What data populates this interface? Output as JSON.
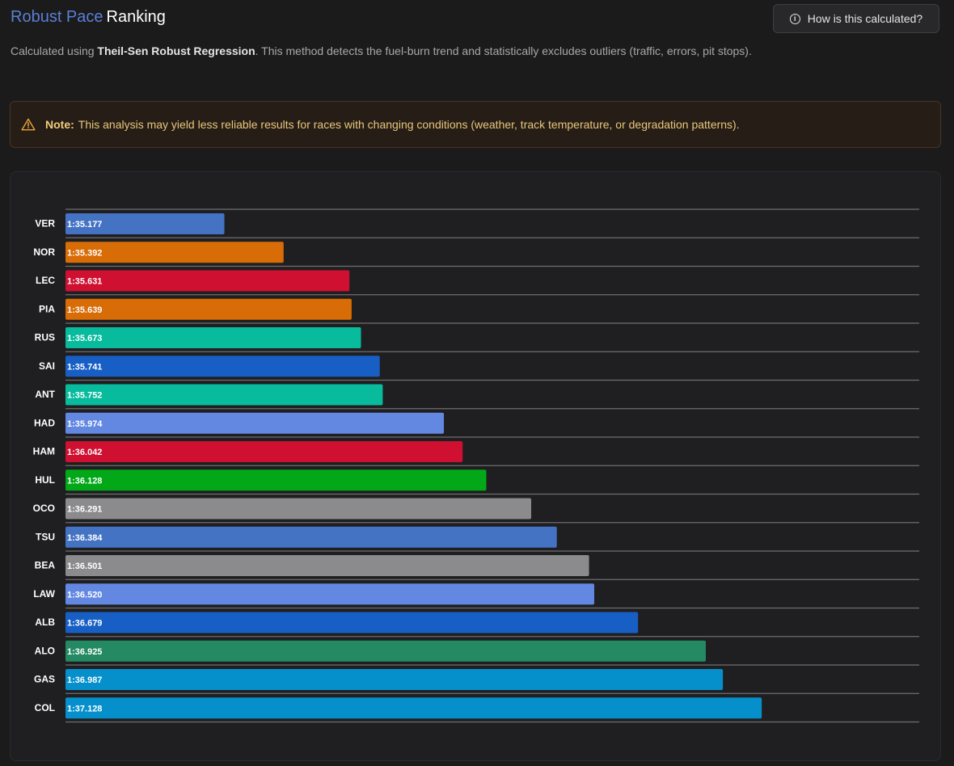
{
  "header": {
    "title_accent": "Robust Pace",
    "title_rest": "Ranking",
    "help_button": "How is this calculated?"
  },
  "description": {
    "prefix": "Calculated using ",
    "method": "Theil-Sen Robust Regression",
    "suffix": ". This method detects the fuel-burn trend and statistically excludes outliers (traffic, errors, pit stops)."
  },
  "note": {
    "label": "Note:",
    "text": "This analysis may yield less reliable results for races with changing conditions (weather, track temperature, or degradation patterns)."
  },
  "colors": {
    "accent": "#5b7fd4",
    "warning": "#e8c77a"
  },
  "chart_data": {
    "type": "bar",
    "orientation": "horizontal",
    "title": "",
    "xlabel": "",
    "ylabel": "",
    "xlim": [
      94.6,
      97.7
    ],
    "grid": true,
    "categories": [
      "VER",
      "NOR",
      "LEC",
      "PIA",
      "RUS",
      "SAI",
      "ANT",
      "HAD",
      "HAM",
      "HUL",
      "OCO",
      "TSU",
      "BEA",
      "LAW",
      "ALB",
      "ALO",
      "GAS",
      "COL"
    ],
    "values": [
      95.177,
      95.392,
      95.631,
      95.639,
      95.673,
      95.741,
      95.752,
      95.974,
      96.042,
      96.128,
      96.291,
      96.384,
      96.501,
      96.52,
      96.679,
      96.925,
      96.987,
      97.128
    ],
    "labels": [
      "1:35.177",
      "1:35.392",
      "1:35.631",
      "1:35.639",
      "1:35.673",
      "1:35.741",
      "1:35.752",
      "1:35.974",
      "1:36.042",
      "1:36.128",
      "1:36.291",
      "1:36.384",
      "1:36.501",
      "1:36.520",
      "1:36.679",
      "1:36.925",
      "1:36.987",
      "1:37.128"
    ],
    "bar_colors": [
      "#4473c4",
      "#d86c06",
      "#cf1030",
      "#d86c06",
      "#07bb9c",
      "#175fc4",
      "#07bb9c",
      "#6288e2",
      "#cf1030",
      "#02a818",
      "#8b8b8e",
      "#4473c4",
      "#8b8b8e",
      "#6288e2",
      "#175fc4",
      "#238a63",
      "#0590cc",
      "#0590cc"
    ]
  }
}
